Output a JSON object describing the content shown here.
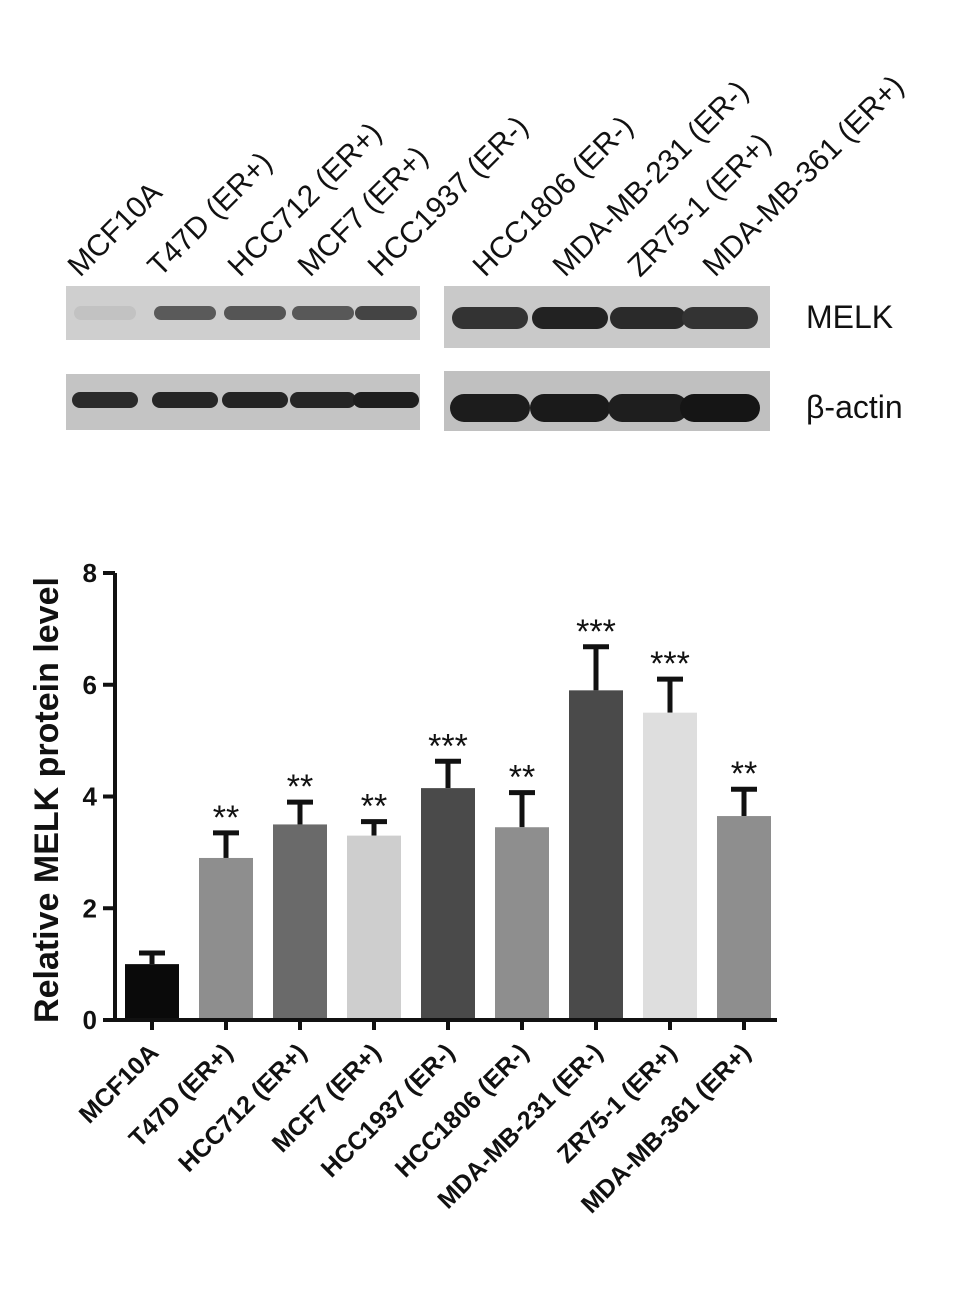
{
  "blot": {
    "lanes_left": [
      "MCF10A",
      "T47D (ER+)",
      "HCC712 (ER+)",
      "MCF7 (ER+)",
      "HCC1937 (ER-)"
    ],
    "lanes_right": [
      "HCC1806 (ER-)",
      "MDA-MB-231 (ER-)",
      "ZR75-1 (ER+)",
      "MDA-MB-361 (ER+)"
    ],
    "rows": [
      "MELK",
      "β-actin"
    ]
  },
  "chart_data": {
    "type": "bar",
    "title": "",
    "xlabel": "",
    "ylabel": "Relative MELK protein level",
    "ylim": [
      0,
      8
    ],
    "yticks": [
      0,
      2,
      4,
      6,
      8
    ],
    "categories": [
      "MCF10A",
      "T47D (ER+)",
      "HCC712 (ER+)",
      "MCF7 (ER+)",
      "HCC1937 (ER-)",
      "HCC1806 (ER-)",
      "MDA-MB-231 (ER-)",
      "ZR75-1 (ER+)",
      "MDA-MB-361 (ER+)"
    ],
    "values": [
      1.0,
      2.9,
      3.5,
      3.3,
      4.15,
      3.45,
      5.9,
      5.5,
      3.65
    ],
    "errors": [
      0.2,
      0.45,
      0.4,
      0.25,
      0.48,
      0.62,
      0.78,
      0.6,
      0.48
    ],
    "significance": [
      "",
      "**",
      "**",
      "**",
      "***",
      "**",
      "***",
      "***",
      "**"
    ],
    "bar_colors": [
      "#0a0a0a",
      "#8e8e8e",
      "#6a6a6a",
      "#cecece",
      "#4a4a4a",
      "#8e8e8e",
      "#4a4a4a",
      "#dedede",
      "#8e8e8e"
    ],
    "grid": false,
    "legend": "none"
  }
}
